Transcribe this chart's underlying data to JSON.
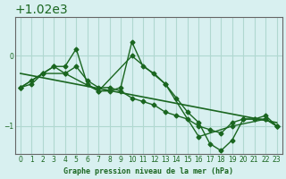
{
  "title": "Graphe pression niveau de la mer (hPa)",
  "bg_color": "#d8f0f0",
  "grid_color": "#b0d8d0",
  "line_color": "#1a6620",
  "marker_color": "#1a6620",
  "x_ticks": [
    0,
    1,
    2,
    3,
    4,
    5,
    6,
    7,
    8,
    9,
    10,
    11,
    12,
    13,
    14,
    15,
    16,
    17,
    18,
    19,
    20,
    21,
    22,
    23
  ],
  "y_ticks": [
    1019,
    1020
  ],
  "ylim": [
    1018.6,
    1020.55
  ],
  "xlim": [
    -0.5,
    23.5
  ],
  "series1": {
    "x": [
      0,
      1,
      2,
      3,
      4,
      5,
      6,
      7,
      8,
      9,
      10,
      11,
      12,
      13,
      14,
      15,
      16,
      17,
      18,
      19,
      20,
      21,
      22,
      23
    ],
    "y": [
      1019.55,
      1019.65,
      1019.75,
      1019.85,
      1019.75,
      1019.85,
      1019.65,
      1019.55,
      1019.55,
      1019.5,
      1019.4,
      1019.35,
      1019.3,
      1019.2,
      1019.15,
      1019.1,
      1019.0,
      1018.95,
      1018.9,
      1019.05,
      1019.1,
      1019.1,
      1019.1,
      1019.0
    ]
  },
  "series2": {
    "x": [
      0,
      1,
      2,
      3,
      4,
      5,
      6,
      7,
      8,
      9,
      10,
      11,
      12,
      13,
      14,
      15,
      16,
      17,
      18,
      19,
      20,
      21,
      22,
      23
    ],
    "y": [
      1019.55,
      1019.6,
      1019.75,
      1019.85,
      1019.85,
      1020.1,
      1019.6,
      1019.5,
      1019.5,
      1019.55,
      1020.2,
      1019.85,
      1019.75,
      1019.6,
      1019.4,
      1019.2,
      1019.05,
      1018.75,
      1018.65,
      1018.8,
      1019.1,
      1019.1,
      1019.15,
      1019.0
    ]
  },
  "series3": {
    "x": [
      0,
      2,
      4,
      7,
      10,
      13,
      16,
      19,
      22,
      23
    ],
    "y": [
      1019.55,
      1019.75,
      1019.75,
      1019.5,
      1020.0,
      1019.6,
      1018.85,
      1019.0,
      1019.1,
      1019.0
    ]
  },
  "series4": {
    "x": [
      0,
      23
    ],
    "y": [
      1019.75,
      1019.05
    ]
  }
}
